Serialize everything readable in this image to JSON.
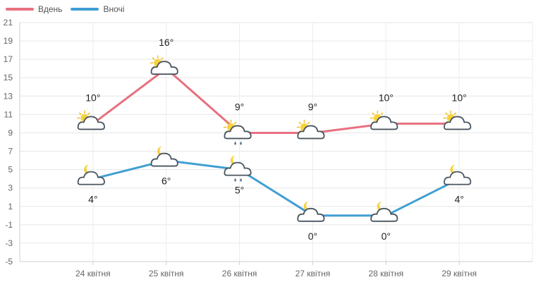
{
  "chart_data": {
    "type": "line",
    "categories": [
      "24 квітня",
      "25 квітня",
      "26 квітня",
      "27 квітня",
      "28 квітня",
      "29 квітня"
    ],
    "series": [
      {
        "name": "Вдень",
        "color": "#e8707f",
        "values": [
          10,
          16,
          9,
          9,
          10,
          10
        ],
        "labels": [
          "10°",
          "16°",
          "9°",
          "9°",
          "10°",
          "10°"
        ],
        "icons": [
          "partly-sunny-cloud-icon",
          "partly-sunny-cloud-icon",
          "sun-rain-cloud-icon",
          "partly-sunny-cloud-icon",
          "partly-sunny-cloud-icon",
          "partly-sunny-cloud-icon"
        ]
      },
      {
        "name": "Вночі",
        "color": "#3f9fd3",
        "values": [
          4,
          6,
          5,
          0,
          0,
          4
        ],
        "labels": [
          "4°",
          "6°",
          "5°",
          "0°",
          "0°",
          "4°"
        ],
        "icons": [
          "moon-cloud-icon",
          "moon-cloud-icon",
          "moon-rain-cloud-icon",
          "moon-cloud-icon",
          "moon-cloud-icon",
          "moon-cloud-icon"
        ]
      }
    ],
    "yticks": [
      "21",
      "19",
      "17",
      "15",
      "13",
      "11",
      "9",
      "7",
      "5",
      "3",
      "1",
      "-1",
      "-3",
      "-5"
    ],
    "ylim": [
      -5,
      21
    ],
    "grid": true,
    "legend": "top-left"
  }
}
